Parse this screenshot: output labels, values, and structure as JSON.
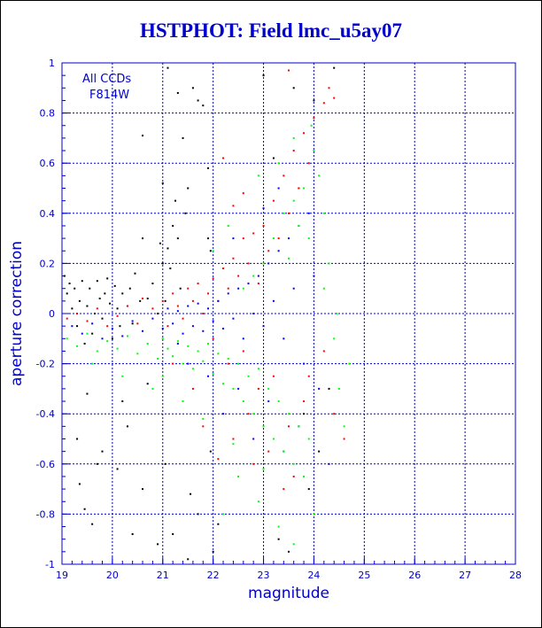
{
  "chart_data": {
    "type": "scatter",
    "title": "HSTPHOT: Field lmc_u5ay07",
    "xlabel": "magnitude",
    "ylabel": "aperture correction",
    "xlim": [
      19,
      28
    ],
    "ylim": [
      -1,
      1
    ],
    "xticks": [
      "19",
      "20",
      "21",
      "22",
      "23",
      "24",
      "25",
      "26",
      "27",
      "28"
    ],
    "yticks": [
      "-1",
      "-0.8",
      "-0.6",
      "-0.4",
      "-0.2",
      "0",
      "0.2",
      "0.4",
      "0.6",
      "0.8",
      "1"
    ],
    "grid": true,
    "annotation": [
      "All CCDs",
      "F814W"
    ],
    "colors": {
      "axis": "#0000cc",
      "grid": "#0000cc",
      "text": "#0000cc"
    },
    "series": [
      {
        "color": "#000000",
        "points": [
          [
            19.05,
            0.15
          ],
          [
            19.1,
            0.08
          ],
          [
            19.15,
            0.12
          ],
          [
            19.2,
            0.02
          ],
          [
            19.25,
            0.1
          ],
          [
            19.3,
            -0.05
          ],
          [
            19.35,
            0.05
          ],
          [
            19.4,
            0.13
          ],
          [
            19.45,
            -0.12
          ],
          [
            19.5,
            0.03
          ],
          [
            19.55,
            0.1
          ],
          [
            19.6,
            -0.08
          ],
          [
            19.65,
            0.0
          ],
          [
            19.7,
            0.13
          ],
          [
            19.75,
            0.06
          ],
          [
            19.8,
            -0.02
          ],
          [
            19.85,
            0.08
          ],
          [
            19.9,
            0.14
          ],
          [
            19.95,
            0.04
          ],
          [
            20.0,
            -0.1
          ],
          [
            20.05,
            0.11
          ],
          [
            20.1,
            0.02
          ],
          [
            20.15,
            -0.05
          ],
          [
            20.2,
            0.08
          ],
          [
            20.3,
            0.03
          ],
          [
            20.35,
            0.1
          ],
          [
            20.4,
            -0.04
          ],
          [
            20.45,
            0.16
          ],
          [
            20.55,
            0.05
          ],
          [
            20.6,
            0.3
          ],
          [
            20.7,
            0.06
          ],
          [
            20.8,
            0.12
          ],
          [
            20.9,
            0.0
          ],
          [
            20.95,
            0.28
          ],
          [
            21.0,
            0.2
          ],
          [
            21.05,
            0.05
          ],
          [
            21.1,
            0.26
          ],
          [
            21.15,
            0.18
          ],
          [
            21.2,
            0.35
          ],
          [
            21.25,
            0.45
          ],
          [
            21.3,
            0.3
          ],
          [
            21.35,
            0.1
          ],
          [
            21.45,
            0.4
          ],
          [
            21.5,
            0.5
          ],
          [
            21.6,
            0.9
          ],
          [
            21.7,
            0.85
          ],
          [
            21.8,
            0.83
          ],
          [
            21.9,
            0.3
          ],
          [
            21.95,
            0.25
          ],
          [
            21.1,
            0.98
          ],
          [
            21.3,
            0.88
          ],
          [
            20.6,
            0.71
          ],
          [
            21.4,
            0.7
          ],
          [
            21.9,
            0.58
          ],
          [
            21.0,
            0.52
          ],
          [
            19.3,
            -0.5
          ],
          [
            19.35,
            -0.68
          ],
          [
            19.45,
            -0.78
          ],
          [
            19.6,
            -0.84
          ],
          [
            19.7,
            -0.6
          ],
          [
            20.1,
            -0.62
          ],
          [
            20.4,
            -0.88
          ],
          [
            20.6,
            -0.7
          ],
          [
            20.9,
            -0.92
          ],
          [
            21.05,
            -0.6
          ],
          [
            21.2,
            -0.88
          ],
          [
            21.55,
            -0.72
          ],
          [
            21.7,
            -0.8
          ],
          [
            21.95,
            -0.55
          ],
          [
            22.1,
            -0.84
          ],
          [
            22.0,
            -0.95
          ],
          [
            21.5,
            -0.98
          ],
          [
            19.8,
            -0.55
          ],
          [
            20.3,
            -0.45
          ],
          [
            19.5,
            -0.32
          ],
          [
            20.2,
            -0.35
          ],
          [
            20.7,
            -0.28
          ],
          [
            23.3,
            -0.9
          ],
          [
            23.5,
            -0.95
          ],
          [
            23.9,
            -0.7
          ],
          [
            24.1,
            -0.55
          ],
          [
            24.3,
            -0.3
          ],
          [
            23.8,
            -0.4
          ],
          [
            23.0,
            0.95
          ],
          [
            23.6,
            0.9
          ],
          [
            24.4,
            0.98
          ],
          [
            24.0,
            0.85
          ],
          [
            23.2,
            0.62
          ],
          [
            23.7,
            0.5
          ]
        ]
      },
      {
        "color": "#ff0000",
        "points": [
          [
            19.1,
            -0.02
          ],
          [
            19.3,
            0.0
          ],
          [
            19.5,
            -0.03
          ],
          [
            19.7,
            0.02
          ],
          [
            19.9,
            -0.05
          ],
          [
            20.1,
            -0.01
          ],
          [
            20.3,
            0.03
          ],
          [
            20.5,
            -0.04
          ],
          [
            20.6,
            0.06
          ],
          [
            20.8,
            0.02
          ],
          [
            21.0,
            0.05
          ],
          [
            21.1,
            -0.05
          ],
          [
            21.2,
            0.08
          ],
          [
            21.3,
            0.03
          ],
          [
            21.4,
            -0.02
          ],
          [
            21.5,
            0.1
          ],
          [
            21.6,
            0.05
          ],
          [
            21.7,
            0.12
          ],
          [
            21.8,
            0.0
          ],
          [
            21.9,
            0.08
          ],
          [
            22.0,
            0.14
          ],
          [
            22.1,
            0.05
          ],
          [
            22.2,
            0.18
          ],
          [
            22.3,
            0.1
          ],
          [
            22.4,
            0.22
          ],
          [
            22.5,
            0.15
          ],
          [
            22.6,
            0.3
          ],
          [
            22.7,
            0.2
          ],
          [
            22.8,
            0.32
          ],
          [
            22.9,
            0.12
          ],
          [
            23.0,
            0.35
          ],
          [
            23.1,
            0.25
          ],
          [
            23.2,
            0.45
          ],
          [
            23.3,
            0.3
          ],
          [
            23.4,
            0.55
          ],
          [
            23.5,
            0.4
          ],
          [
            23.6,
            0.65
          ],
          [
            23.7,
            0.5
          ],
          [
            23.8,
            0.72
          ],
          [
            23.9,
            0.6
          ],
          [
            24.0,
            0.78
          ],
          [
            24.2,
            0.84
          ],
          [
            24.3,
            0.9
          ],
          [
            24.4,
            0.86
          ],
          [
            23.5,
            0.97
          ],
          [
            22.2,
            0.62
          ],
          [
            22.4,
            0.43
          ],
          [
            22.6,
            0.48
          ],
          [
            22.0,
            -0.1
          ],
          [
            22.3,
            -0.2
          ],
          [
            22.6,
            -0.15
          ],
          [
            22.9,
            -0.3
          ],
          [
            23.2,
            -0.25
          ],
          [
            23.5,
            -0.45
          ],
          [
            23.8,
            -0.35
          ],
          [
            22.4,
            -0.5
          ],
          [
            22.8,
            -0.6
          ],
          [
            23.1,
            -0.55
          ],
          [
            23.4,
            -0.7
          ],
          [
            21.8,
            -0.45
          ],
          [
            22.1,
            -0.58
          ],
          [
            22.7,
            -0.4
          ],
          [
            23.6,
            -0.65
          ],
          [
            23.9,
            -0.25
          ],
          [
            24.2,
            -0.15
          ],
          [
            24.4,
            -0.4
          ],
          [
            24.6,
            -0.5
          ],
          [
            21.6,
            -0.3
          ],
          [
            21.2,
            -0.2
          ]
        ]
      },
      {
        "color": "#0000ff",
        "points": [
          [
            19.2,
            -0.05
          ],
          [
            19.4,
            -0.08
          ],
          [
            19.6,
            -0.04
          ],
          [
            19.8,
            -0.1
          ],
          [
            20.0,
            -0.06
          ],
          [
            20.2,
            -0.09
          ],
          [
            20.4,
            -0.03
          ],
          [
            20.6,
            -0.07
          ],
          [
            20.8,
            -0.02
          ],
          [
            21.0,
            -0.06
          ],
          [
            21.1,
            0.02
          ],
          [
            21.2,
            -0.04
          ],
          [
            21.3,
            0.01
          ],
          [
            21.4,
            -0.08
          ],
          [
            21.5,
            0.03
          ],
          [
            21.6,
            -0.05
          ],
          [
            21.7,
            0.04
          ],
          [
            21.8,
            -0.07
          ],
          [
            21.9,
            0.02
          ],
          [
            22.0,
            -0.03
          ],
          [
            22.1,
            0.05
          ],
          [
            22.2,
            -0.06
          ],
          [
            22.3,
            0.08
          ],
          [
            22.4,
            -0.02
          ],
          [
            22.5,
            0.1
          ],
          [
            22.6,
            -0.1
          ],
          [
            22.7,
            0.12
          ],
          [
            22.8,
            0.0
          ],
          [
            22.9,
            0.15
          ],
          [
            23.0,
            -0.05
          ],
          [
            23.1,
            0.2
          ],
          [
            23.2,
            0.05
          ],
          [
            23.3,
            0.25
          ],
          [
            23.4,
            -0.1
          ],
          [
            23.5,
            0.3
          ],
          [
            23.6,
            0.1
          ],
          [
            23.7,
            0.35
          ],
          [
            23.8,
            -0.2
          ],
          [
            23.9,
            0.4
          ],
          [
            24.0,
            0.15
          ],
          [
            22.2,
            -0.4
          ],
          [
            22.5,
            -0.3
          ],
          [
            22.8,
            -0.5
          ],
          [
            23.1,
            -0.35
          ],
          [
            23.4,
            -0.55
          ],
          [
            23.7,
            -0.45
          ],
          [
            21.9,
            -0.25
          ],
          [
            21.5,
            -0.2
          ],
          [
            22.4,
            0.3
          ],
          [
            23.0,
            0.42
          ],
          [
            23.3,
            0.5
          ],
          [
            24.1,
            -0.3
          ],
          [
            24.3,
            -0.6
          ],
          [
            21.3,
            -0.12
          ]
        ]
      },
      {
        "color": "#00ff00",
        "points": [
          [
            19.1,
            -0.1
          ],
          [
            19.3,
            -0.13
          ],
          [
            19.5,
            -0.08
          ],
          [
            19.7,
            -0.15
          ],
          [
            19.9,
            -0.11
          ],
          [
            20.1,
            -0.14
          ],
          [
            20.3,
            -0.09
          ],
          [
            20.5,
            -0.16
          ],
          [
            20.7,
            -0.12
          ],
          [
            20.9,
            -0.18
          ],
          [
            21.0,
            -0.1
          ],
          [
            21.1,
            -0.14
          ],
          [
            21.2,
            -0.17
          ],
          [
            21.3,
            -0.11
          ],
          [
            21.4,
            -0.2
          ],
          [
            21.5,
            -0.13
          ],
          [
            21.6,
            -0.22
          ],
          [
            21.7,
            -0.15
          ],
          [
            21.8,
            -0.19
          ],
          [
            21.9,
            -0.12
          ],
          [
            22.0,
            -0.24
          ],
          [
            22.1,
            -0.16
          ],
          [
            22.2,
            -0.28
          ],
          [
            22.3,
            -0.18
          ],
          [
            22.4,
            -0.3
          ],
          [
            22.5,
            -0.2
          ],
          [
            22.6,
            -0.35
          ],
          [
            22.7,
            -0.25
          ],
          [
            22.8,
            -0.4
          ],
          [
            22.9,
            -0.22
          ],
          [
            23.0,
            -0.45
          ],
          [
            23.1,
            -0.3
          ],
          [
            23.2,
            -0.5
          ],
          [
            23.3,
            -0.35
          ],
          [
            23.4,
            -0.55
          ],
          [
            23.5,
            -0.4
          ],
          [
            23.6,
            -0.6
          ],
          [
            23.7,
            -0.45
          ],
          [
            23.8,
            -0.65
          ],
          [
            23.9,
            -0.5
          ],
          [
            22.6,
            0.1
          ],
          [
            22.8,
            0.15
          ],
          [
            23.0,
            0.2
          ],
          [
            23.2,
            0.3
          ],
          [
            23.4,
            0.4
          ],
          [
            23.5,
            0.22
          ],
          [
            23.6,
            0.45
          ],
          [
            23.7,
            0.35
          ],
          [
            23.8,
            0.5
          ],
          [
            23.9,
            0.3
          ],
          [
            24.0,
            0.65
          ],
          [
            24.1,
            0.55
          ],
          [
            24.2,
            0.4
          ],
          [
            23.95,
            0.75
          ],
          [
            24.3,
            0.2
          ],
          [
            24.4,
            -0.1
          ],
          [
            24.5,
            -0.3
          ],
          [
            24.6,
            -0.45
          ],
          [
            24.7,
            -0.2
          ],
          [
            22.2,
            -0.8
          ],
          [
            22.5,
            -0.65
          ],
          [
            22.9,
            -0.75
          ],
          [
            23.3,
            -0.85
          ],
          [
            23.6,
            -0.92
          ],
          [
            24.0,
            -0.8
          ],
          [
            21.0,
            -0.25
          ],
          [
            21.4,
            -0.35
          ],
          [
            20.2,
            -0.25
          ],
          [
            19.6,
            -0.2
          ],
          [
            20.8,
            -0.3
          ],
          [
            21.8,
            -0.42
          ],
          [
            22.4,
            -0.52
          ],
          [
            23.0,
            -0.62
          ],
          [
            22.0,
            0.25
          ],
          [
            22.3,
            0.35
          ],
          [
            22.9,
            0.55
          ],
          [
            23.3,
            0.6
          ],
          [
            23.6,
            0.7
          ],
          [
            24.2,
            0.1
          ],
          [
            24.45,
            0.0
          ]
        ]
      }
    ]
  }
}
